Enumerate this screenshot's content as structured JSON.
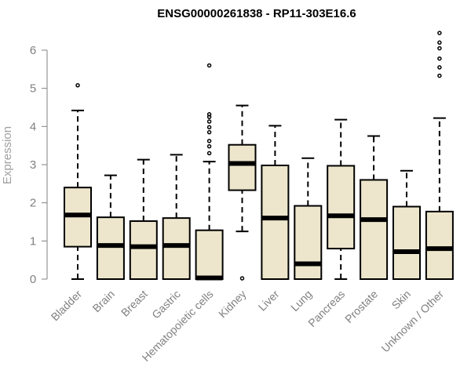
{
  "chart_data": {
    "type": "boxplot",
    "title": "ENSG00000261838 - RP11-303E16.6",
    "xlabel": "",
    "ylabel": "Expression",
    "ylim": [
      0,
      6.5
    ],
    "yticks": [
      0,
      1,
      2,
      3,
      4,
      5,
      6
    ],
    "box_fill": "#ede6cc",
    "box_stroke": "#000000",
    "axis_color": "#808080",
    "grid": false,
    "categories": [
      "Bladder",
      "Brain",
      "Breast",
      "Gastric",
      "Hematopoietic cells",
      "Kidney",
      "Liver",
      "Lung",
      "Pancreas",
      "Prostate",
      "Skin",
      "Unknown / Other"
    ],
    "boxes": [
      {
        "min": 0.0,
        "q1": 0.85,
        "median": 1.68,
        "q3": 2.4,
        "max": 4.42,
        "outliers": [
          5.08
        ]
      },
      {
        "min": 0.0,
        "q1": 0.0,
        "median": 0.88,
        "q3": 1.62,
        "max": 2.72,
        "outliers": []
      },
      {
        "min": 0.0,
        "q1": 0.0,
        "median": 0.85,
        "q3": 1.52,
        "max": 3.13,
        "outliers": []
      },
      {
        "min": 0.0,
        "q1": 0.0,
        "median": 0.88,
        "q3": 1.6,
        "max": 3.26,
        "outliers": []
      },
      {
        "min": 0.0,
        "q1": 0.0,
        "median": 0.03,
        "q3": 1.28,
        "max": 3.08,
        "outliers": [
          3.3,
          3.48,
          3.62,
          3.85,
          3.98,
          4.13,
          4.25,
          4.32,
          5.6
        ]
      },
      {
        "min": 1.25,
        "q1": 2.33,
        "median": 3.03,
        "q3": 3.52,
        "max": 4.55,
        "outliers": [
          0.02
        ]
      },
      {
        "min": 0.0,
        "q1": 0.0,
        "median": 1.6,
        "q3": 2.98,
        "max": 4.02,
        "outliers": []
      },
      {
        "min": 0.0,
        "q1": 0.0,
        "median": 0.4,
        "q3": 1.92,
        "max": 3.17,
        "outliers": []
      },
      {
        "min": 0.0,
        "q1": 0.8,
        "median": 1.66,
        "q3": 2.97,
        "max": 4.18,
        "outliers": []
      },
      {
        "min": 0.0,
        "q1": 0.0,
        "median": 1.56,
        "q3": 2.6,
        "max": 3.75,
        "outliers": []
      },
      {
        "min": 0.0,
        "q1": 0.0,
        "median": 0.72,
        "q3": 1.9,
        "max": 2.84,
        "outliers": []
      },
      {
        "min": 0.0,
        "q1": 0.0,
        "median": 0.8,
        "q3": 1.77,
        "max": 4.22,
        "outliers": [
          5.33,
          5.55,
          5.78,
          6.05,
          6.2,
          6.45
        ]
      }
    ]
  }
}
